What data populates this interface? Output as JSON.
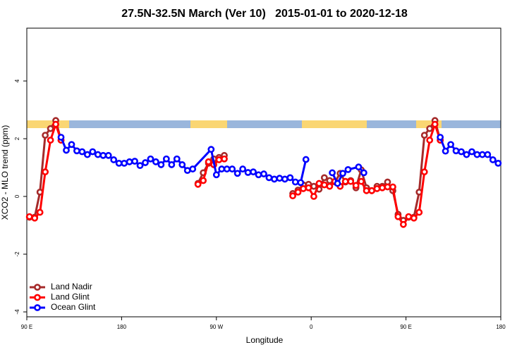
{
  "chart_data": {
    "type": "line",
    "title": "27.5N-32.5N March (Ver 10)   2015-01-01 to 2020-12-18",
    "x_label": "Longitude",
    "y_label": "XCO2 - MLO trend (ppm)",
    "xlim": [
      90,
      540
    ],
    "xticks": [
      {
        "value": 90,
        "label": "90 E"
      },
      180,
      {
        "value": 270,
        "label": "90 W"
      },
      {
        "value": 360,
        "label": "0"
      },
      {
        "value": 450,
        "label": "90 E"
      },
      {
        "value": 540,
        "label": "180"
      }
    ],
    "ylim": [
      -4.17,
      5.83
    ],
    "yticks": [
      -4,
      -2,
      0,
      2,
      4
    ],
    "grid": false,
    "legend": "bottom-left",
    "series": [
      {
        "name": "Land Nadir",
        "color": "#a52a2a",
        "x": [
          92.5,
          97.5,
          102.5,
          107.5,
          112.5,
          117.5,
          122.5,
          200,
          252.5,
          257.5,
          262.5,
          267.5,
          272.5,
          277.5,
          300,
          342.5,
          347.5,
          352.5,
          357.5,
          362.5,
          367.5,
          372.5,
          377.5,
          382.5,
          387.5,
          392.5,
          397.5,
          402.5,
          407.5,
          412.5,
          417.5,
          422.5,
          427.5,
          432.5,
          437.5,
          442.5,
          447.5,
          452.5,
          457.5,
          462.5,
          467.5,
          472.5,
          477.5,
          482.5
        ],
        "values": [
          -0.72,
          -0.72,
          0.15,
          2.12,
          2.35,
          2.63,
          1.95,
          null,
          0.45,
          0.82,
          1.15,
          1.3,
          1.35,
          1.42,
          null,
          0.1,
          0.22,
          0.4,
          0.42,
          0.35,
          0.25,
          0.65,
          0.55,
          0.5,
          0.8,
          0.5,
          0.55,
          0.3,
          0.92,
          0.3,
          0.2,
          0.35,
          0.35,
          0.5,
          0.2,
          -0.62,
          -0.83,
          -0.72,
          -0.72,
          0.15,
          2.12,
          2.35,
          2.63,
          1.95
        ]
      },
      {
        "name": "Land Glint",
        "color": "#ff0000",
        "x": [
          92.5,
          97.5,
          102.5,
          107.5,
          112.5,
          117.5,
          122.5,
          200,
          252.5,
          257.5,
          262.5,
          267.5,
          272.5,
          277.5,
          300,
          342.5,
          347.5,
          352.5,
          357.5,
          362.5,
          367.5,
          372.5,
          377.5,
          382.5,
          387.5,
          392.5,
          397.5,
          402.5,
          407.5,
          412.5,
          417.5,
          422.5,
          427.5,
          432.5,
          437.5,
          442.5,
          447.5,
          452.5,
          457.5,
          462.5,
          467.5,
          472.5,
          477.5,
          482.5
        ],
        "values": [
          -0.7,
          -0.75,
          -0.55,
          0.85,
          1.95,
          2.5,
          1.95,
          null,
          0.42,
          0.55,
          1.2,
          1.1,
          1.27,
          1.3,
          null,
          0.02,
          0.15,
          0.27,
          0.3,
          0,
          0.45,
          0.4,
          0.35,
          0.52,
          0.35,
          0.52,
          0.52,
          0.38,
          0.52,
          0.2,
          0.2,
          0.27,
          0.3,
          0.33,
          0.33,
          -0.7,
          -0.97,
          -0.7,
          -0.75,
          -0.55,
          0.85,
          1.95,
          2.5,
          1.95
        ]
      },
      {
        "name": "Ocean Glint",
        "color": "#0000ff",
        "x": [
          122.5,
          127.5,
          132.5,
          137.5,
          142.5,
          147.5,
          152.5,
          157.5,
          162.5,
          167.5,
          172.5,
          177.5,
          182.5,
          187.5,
          192.5,
          197.5,
          202.5,
          207.5,
          212.5,
          217.5,
          222.5,
          227.5,
          232.5,
          237.5,
          242.5,
          247.5,
          265,
          270,
          275,
          280,
          285,
          290,
          295,
          300,
          305,
          310,
          315,
          320,
          325,
          330,
          335,
          340,
          345,
          350,
          355,
          360,
          380,
          385,
          390,
          395,
          405,
          410,
          420,
          482.5,
          487.5,
          492.5,
          497.5,
          502.5,
          507.5,
          512.5,
          517.5,
          522.5,
          527.5,
          532.5,
          537.5
        ],
        "values": [
          2.05,
          1.6,
          1.8,
          1.58,
          1.55,
          1.45,
          1.55,
          1.45,
          1.42,
          1.42,
          1.27,
          1.15,
          1.15,
          1.2,
          1.22,
          1.07,
          1.17,
          1.3,
          1.2,
          1.1,
          1.3,
          1.1,
          1.3,
          1.1,
          0.9,
          0.95,
          1.63,
          0.75,
          0.95,
          0.95,
          0.95,
          0.8,
          0.95,
          0.83,
          0.85,
          0.75,
          0.78,
          0.65,
          0.6,
          0.63,
          0.6,
          0.65,
          0.5,
          0.48,
          1.28,
          null,
          0.82,
          0.45,
          0.8,
          0.93,
          1.02,
          0.82,
          null,
          2.05,
          1.57,
          1.8,
          1.58,
          1.55,
          1.45,
          1.55,
          1.45,
          1.45,
          1.45,
          1.27,
          1.15
        ]
      }
    ]
  }
}
